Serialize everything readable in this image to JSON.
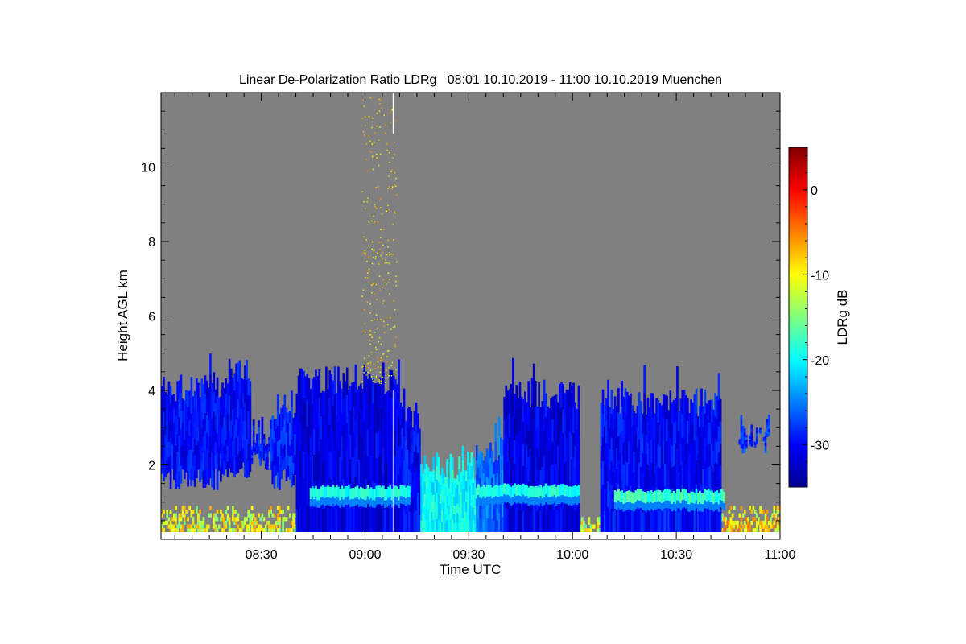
{
  "chart_data": {
    "type": "heatmap",
    "title": "Linear De-Polarization Ratio LDRg   08:01 10.10.2019 - 11:00 10.10.2019 Muenchen",
    "xlabel": "Time UTC",
    "ylabel": "Height AGL km",
    "colorbar_label": "LDRg dB",
    "x_range_minutes_after_0800": [
      1,
      180
    ],
    "ylim": [
      0,
      12
    ],
    "x_ticks": [
      {
        "label": "08:30",
        "min": 30
      },
      {
        "label": "09:00",
        "min": 60
      },
      {
        "label": "09:30",
        "min": 90
      },
      {
        "label": "10:00",
        "min": 120
      },
      {
        "label": "10:30",
        "min": 150
      },
      {
        "label": "11:00",
        "min": 180
      }
    ],
    "y_ticks": [
      {
        "label": "2",
        "km": 2
      },
      {
        "label": "4",
        "km": 4
      },
      {
        "label": "6",
        "km": 6
      },
      {
        "label": "8",
        "km": 8
      },
      {
        "label": "10",
        "km": 10
      }
    ],
    "colorbar_range": [
      -35,
      5
    ],
    "colorbar_ticks": [
      {
        "label": "0",
        "db": 0
      },
      {
        "label": "-10",
        "db": -10
      },
      {
        "label": "-20",
        "db": -20
      },
      {
        "label": "-30",
        "db": -30
      }
    ],
    "no_data_color": "#808080",
    "cloud_layers": [
      {
        "t_start": 1,
        "t_end": 20,
        "base_km": 1.5,
        "top_km": 4.1,
        "ldr_db": -31
      },
      {
        "t_start": 20,
        "t_end": 27,
        "base_km": 1.7,
        "top_km": 4.5,
        "ldr_db": -31
      },
      {
        "t_start": 27,
        "t_end": 33,
        "base_km": 2.0,
        "top_km": 2.9,
        "ldr_db": -30
      },
      {
        "t_start": 33,
        "t_end": 40,
        "base_km": 1.5,
        "top_km": 3.6,
        "ldr_db": -30
      },
      {
        "t_start": 40,
        "t_end": 70,
        "base_km": 0.2,
        "top_km": 4.3,
        "ldr_db": -32
      },
      {
        "t_start": 70,
        "t_end": 76,
        "base_km": 0.2,
        "top_km": 3.3,
        "ldr_db": -31
      },
      {
        "t_start": 76,
        "t_end": 92,
        "base_km": 0.2,
        "top_km": 2.0,
        "ldr_db": -21
      },
      {
        "t_start": 92,
        "t_end": 100,
        "base_km": 0.2,
        "top_km": 2.4,
        "ldr_db": -27
      },
      {
        "t_start": 100,
        "t_end": 122,
        "base_km": 0.2,
        "top_km": 3.9,
        "ldr_db": -32
      },
      {
        "t_start": 128,
        "t_end": 163,
        "base_km": 0.2,
        "top_km": 3.7,
        "ldr_db": -31
      },
      {
        "t_start": 168,
        "t_end": 177,
        "base_km": 2.5,
        "top_km": 3.0,
        "ldr_db": -29
      }
    ],
    "melting_layer": [
      {
        "t_start": 44,
        "t_end": 73,
        "height_km": 1.25,
        "ldr_db": -19
      },
      {
        "t_start": 92,
        "t_end": 122,
        "height_km": 1.3,
        "ldr_db": -19
      },
      {
        "t_start": 132,
        "t_end": 164,
        "height_km": 1.15,
        "ldr_db": -18
      }
    ],
    "surface_clutter": [
      {
        "t_start": 1,
        "t_end": 40,
        "top_km": 0.8,
        "ldr_db": -11
      },
      {
        "t_start": 76,
        "t_end": 92,
        "top_km": 0.7,
        "ldr_db": -13
      },
      {
        "t_start": 122,
        "t_end": 128,
        "top_km": 0.6,
        "ldr_db": -12
      },
      {
        "t_start": 163,
        "t_end": 180,
        "top_km": 0.8,
        "ldr_db": -9
      }
    ],
    "ice_particles": {
      "t_start": 59,
      "t_end": 69,
      "base_km": 4.2,
      "top_km": 12,
      "ldr_db": -9
    }
  }
}
